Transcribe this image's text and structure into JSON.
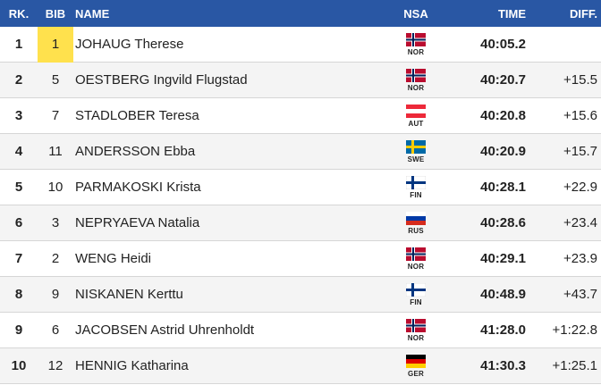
{
  "headers": {
    "rank": "RK.",
    "bib": "BIB",
    "name": "NAME",
    "nsa": "NSA",
    "time": "TIME",
    "diff": "DIFF."
  },
  "rows": [
    {
      "rank": "1",
      "bib": "1",
      "name": "JOHAUG Therese",
      "nsa": "NOR",
      "time": "40:05.2",
      "diff": ""
    },
    {
      "rank": "2",
      "bib": "5",
      "name": "OESTBERG Ingvild Flugstad",
      "nsa": "NOR",
      "time": "40:20.7",
      "diff": "+15.5"
    },
    {
      "rank": "3",
      "bib": "7",
      "name": "STADLOBER Teresa",
      "nsa": "AUT",
      "time": "40:20.8",
      "diff": "+15.6"
    },
    {
      "rank": "4",
      "bib": "11",
      "name": "ANDERSSON Ebba",
      "nsa": "SWE",
      "time": "40:20.9",
      "diff": "+15.7"
    },
    {
      "rank": "5",
      "bib": "10",
      "name": "PARMAKOSKI Krista",
      "nsa": "FIN",
      "time": "40:28.1",
      "diff": "+22.9"
    },
    {
      "rank": "6",
      "bib": "3",
      "name": "NEPRYAEVA Natalia",
      "nsa": "RUS",
      "time": "40:28.6",
      "diff": "+23.4"
    },
    {
      "rank": "7",
      "bib": "2",
      "name": "WENG Heidi",
      "nsa": "NOR",
      "time": "40:29.1",
      "diff": "+23.9"
    },
    {
      "rank": "8",
      "bib": "9",
      "name": "NISKANEN Kerttu",
      "nsa": "FIN",
      "time": "40:48.9",
      "diff": "+43.7"
    },
    {
      "rank": "9",
      "bib": "6",
      "name": "JACOBSEN Astrid Uhrenholdt",
      "nsa": "NOR",
      "time": "41:28.0",
      "diff": "+1:22.8"
    },
    {
      "rank": "10",
      "bib": "12",
      "name": "HENNIG Katharina",
      "nsa": "GER",
      "time": "41:30.3",
      "diff": "+1:25.1"
    }
  ],
  "colors": {
    "header_bg": "#2957a4",
    "highlight": "#ffe14d"
  }
}
